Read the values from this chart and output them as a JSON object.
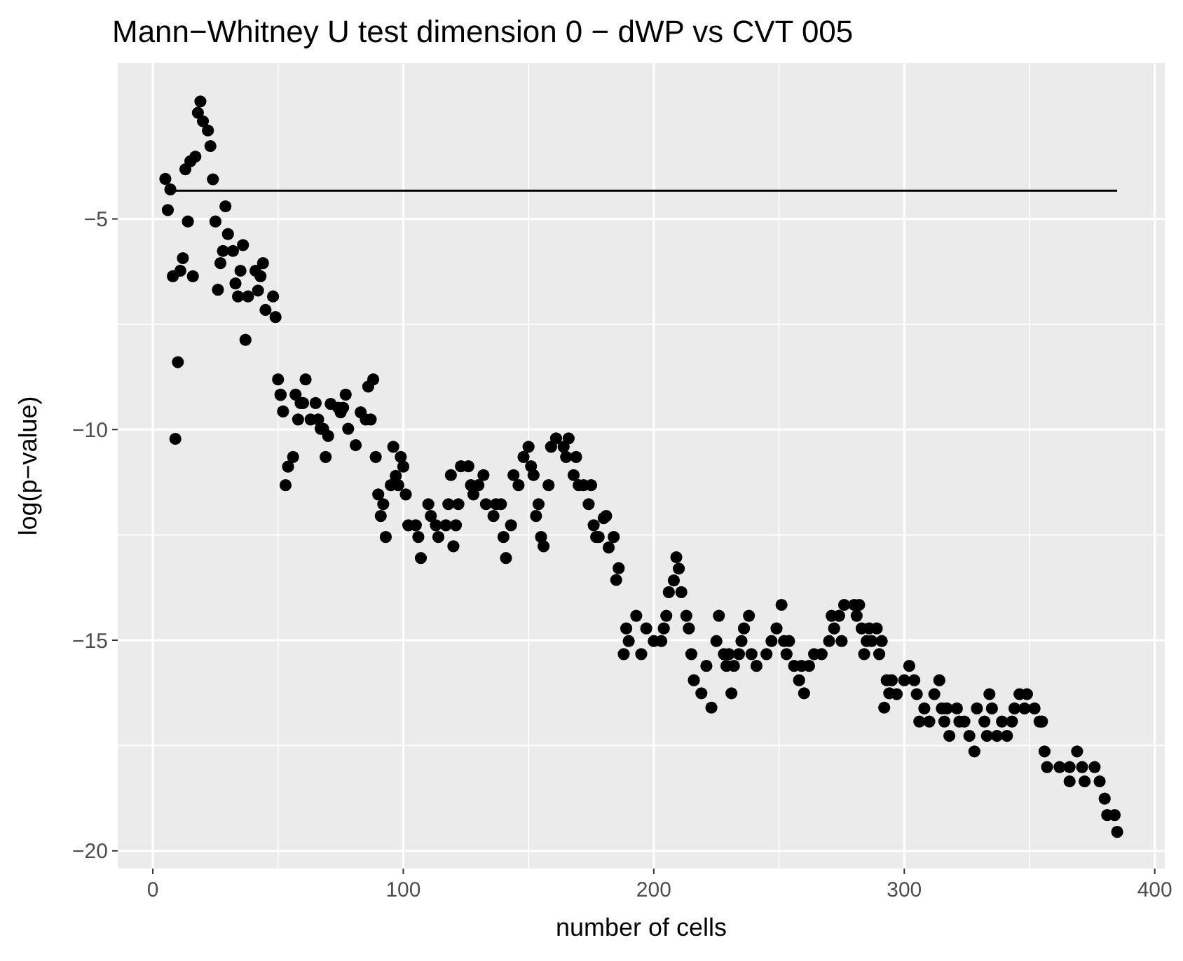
{
  "chart_data": {
    "type": "scatter",
    "title": "Mann−Whitney U test dimension 0 − dWP vs CVT 005",
    "xlabel": "number of cells",
    "ylabel": "log(p−value)",
    "xlim": [
      -14,
      404
    ],
    "ylim": [
      -20.42,
      -1.3
    ],
    "xticks": [
      0,
      100,
      200,
      300,
      400
    ],
    "yticks": [
      {
        "value": -20,
        "label": "−20"
      },
      {
        "value": -15,
        "label": "−15"
      },
      {
        "value": -10,
        "label": "−10"
      },
      {
        "value": -5,
        "label": "−5"
      }
    ],
    "grid": true,
    "series": [
      {
        "marker": "circle",
        "color": "#000000",
        "x": [
          5,
          6,
          7,
          8,
          9,
          10,
          11,
          12,
          13,
          14,
          15,
          16,
          17,
          18,
          19,
          20,
          22,
          23,
          24,
          25,
          26,
          27,
          28,
          29,
          30,
          32,
          33,
          34,
          35,
          36,
          37,
          38,
          41,
          42,
          43,
          44,
          45,
          48,
          49,
          50,
          51,
          51,
          52,
          53,
          54,
          56,
          57,
          58,
          59,
          60,
          61,
          63,
          65,
          66,
          67,
          68,
          69,
          70,
          71,
          74,
          75,
          76,
          77,
          78,
          81,
          83,
          85,
          86,
          87,
          88,
          89,
          90,
          91,
          92,
          93,
          95,
          96,
          97,
          98,
          99,
          100,
          101,
          102,
          105,
          106,
          107,
          110,
          111,
          113,
          114,
          117,
          118,
          119,
          120,
          121,
          122,
          123,
          126,
          127,
          128,
          130,
          132,
          133,
          136,
          137,
          139,
          140,
          141,
          143,
          144,
          146,
          148,
          150,
          151,
          152,
          153,
          154,
          155,
          156,
          158,
          159,
          161,
          164,
          165,
          166,
          168,
          169,
          170,
          172,
          174,
          175,
          176,
          177,
          178,
          180,
          181,
          182,
          184,
          185,
          186,
          188,
          189,
          190,
          193,
          195,
          197,
          200,
          203,
          204,
          205,
          206,
          208,
          209,
          210,
          211,
          213,
          214,
          215,
          216,
          219,
          221,
          223,
          225,
          226,
          228,
          229,
          230,
          231,
          232,
          234,
          235,
          236,
          238,
          239,
          241,
          245,
          247,
          249,
          251,
          252,
          253,
          254,
          256,
          258,
          259,
          260,
          262,
          264,
          267,
          270,
          271,
          272,
          274,
          275,
          276,
          280,
          281,
          282,
          283,
          284,
          285,
          286,
          287,
          289,
          290,
          291,
          292,
          293,
          294,
          295,
          297,
          300,
          302,
          304,
          305,
          306,
          308,
          310,
          312,
          314,
          315,
          316,
          317,
          318,
          321,
          322,
          324,
          326,
          328,
          329,
          332,
          333,
          334,
          335,
          337,
          339,
          341,
          343,
          344,
          346,
          348,
          349,
          352,
          354,
          355,
          356,
          357,
          362,
          366,
          366,
          369,
          371,
          372,
          376,
          378,
          380,
          381,
          384,
          385
        ],
        "values": [
          -4.05,
          -4.79,
          -4.3,
          -6.36,
          -10.22,
          -8.4,
          -6.23,
          -5.93,
          -3.82,
          -5.06,
          -3.63,
          -6.36,
          -3.52,
          -2.48,
          -2.21,
          -2.68,
          -2.9,
          -3.27,
          -4.06,
          -5.06,
          -6.68,
          -6.05,
          -5.76,
          -4.7,
          -5.36,
          -5.76,
          -6.53,
          -6.84,
          -6.23,
          -5.62,
          -7.87,
          -6.84,
          -6.23,
          -6.7,
          -6.36,
          -6.05,
          -7.16,
          -6.84,
          -7.33,
          -8.81,
          -9.17,
          -9.18,
          -9.57,
          -11.32,
          -10.88,
          -10.65,
          -9.17,
          -9.76,
          -9.37,
          -9.37,
          -8.81,
          -9.76,
          -9.37,
          -9.76,
          -9.98,
          -9.98,
          -10.65,
          -10.15,
          -9.39,
          -9.48,
          -9.59,
          -9.48,
          -9.17,
          -9.98,
          -10.37,
          -9.59,
          -9.76,
          -8.98,
          -9.76,
          -8.81,
          -10.65,
          -11.54,
          -12.05,
          -11.77,
          -12.55,
          -11.32,
          -10.41,
          -11.1,
          -11.32,
          -10.65,
          -10.88,
          -11.54,
          -12.27,
          -12.27,
          -12.55,
          -13.05,
          -11.77,
          -12.05,
          -12.27,
          -12.55,
          -12.27,
          -11.77,
          -11.08,
          -12.77,
          -12.27,
          -11.77,
          -10.87,
          -10.87,
          -11.32,
          -11.54,
          -11.32,
          -11.08,
          -11.77,
          -12.05,
          -11.77,
          -11.77,
          -12.55,
          -13.05,
          -12.27,
          -11.08,
          -11.32,
          -10.65,
          -10.41,
          -10.87,
          -11.08,
          -12.05,
          -11.77,
          -12.55,
          -12.77,
          -11.32,
          -10.41,
          -10.21,
          -10.41,
          -10.65,
          -10.21,
          -11.08,
          -10.65,
          -11.32,
          -11.32,
          -11.77,
          -11.32,
          -12.27,
          -12.55,
          -12.55,
          -12.1,
          -12.05,
          -12.8,
          -12.55,
          -13.57,
          -13.29,
          -15.33,
          -14.72,
          -15.02,
          -14.42,
          -15.33,
          -14.72,
          -15.02,
          -15.02,
          -14.72,
          -14.42,
          -13.86,
          -13.58,
          -13.03,
          -13.3,
          -13.86,
          -14.42,
          -14.72,
          -15.33,
          -15.95,
          -16.26,
          -15.61,
          -16.6,
          -15.02,
          -14.42,
          -15.33,
          -15.61,
          -15.33,
          -16.26,
          -15.61,
          -15.33,
          -15.02,
          -14.72,
          -14.42,
          -15.33,
          -15.61,
          -15.33,
          -15.02,
          -14.72,
          -14.16,
          -15.02,
          -15.33,
          -15.02,
          -15.61,
          -15.95,
          -15.61,
          -16.26,
          -15.61,
          -15.33,
          -15.33,
          -15.02,
          -14.42,
          -14.72,
          -14.42,
          -15.02,
          -14.16,
          -14.16,
          -14.42,
          -14.16,
          -14.72,
          -15.33,
          -15.02,
          -14.72,
          -15.02,
          -14.72,
          -15.33,
          -15.02,
          -16.6,
          -15.95,
          -16.26,
          -15.95,
          -16.28,
          -15.95,
          -15.61,
          -15.95,
          -16.28,
          -16.93,
          -16.62,
          -16.93,
          -16.28,
          -15.95,
          -16.62,
          -16.93,
          -16.62,
          -17.27,
          -16.62,
          -16.93,
          -16.93,
          -17.27,
          -17.64,
          -16.62,
          -16.93,
          -17.27,
          -16.28,
          -16.62,
          -17.27,
          -16.93,
          -17.27,
          -16.93,
          -16.62,
          -16.28,
          -16.62,
          -16.28,
          -16.62,
          -16.93,
          -16.93,
          -17.64,
          -18.01,
          -18.01,
          -18.01,
          -18.35,
          -17.64,
          -18.01,
          -18.35,
          -18.01,
          -18.35,
          -18.76,
          -19.15,
          -19.15,
          -19.55
        ]
      },
      {
        "type": "line",
        "color": "#000000",
        "x": [
          9,
          385
        ],
        "values": [
          -4.33,
          -4.33
        ]
      }
    ]
  }
}
